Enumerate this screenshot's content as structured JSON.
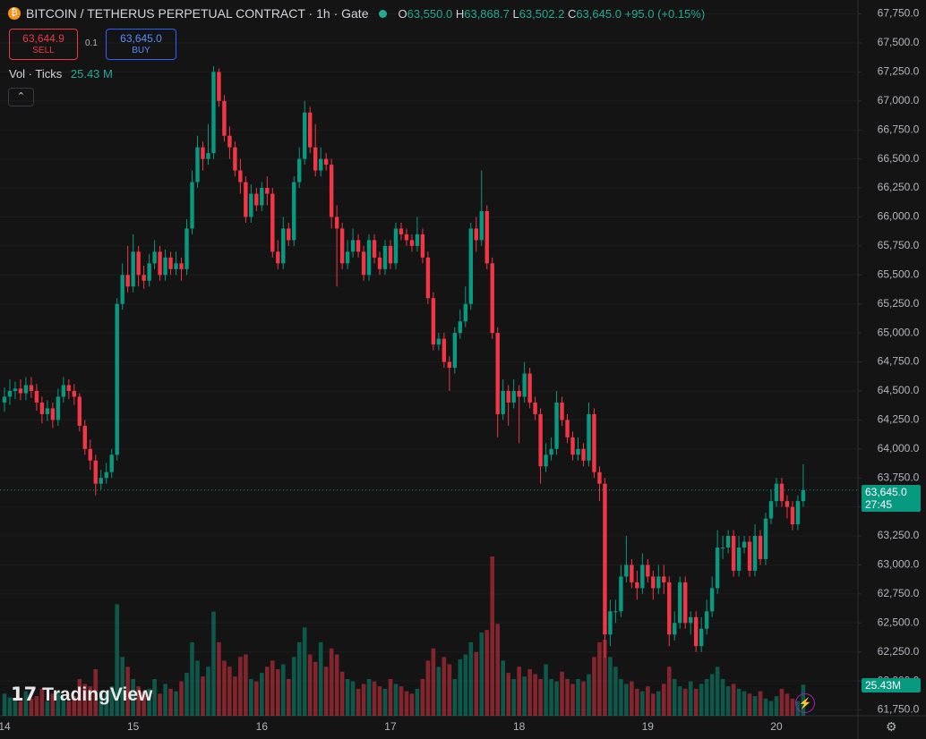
{
  "header": {
    "title": "BITCOIN / TETHERUS PERPETUAL CONTRACT · 1h · Gate",
    "ohlc": [
      {
        "key": "O",
        "value": "63,550.0"
      },
      {
        "key": "H",
        "value": "63,868.7"
      },
      {
        "key": "L",
        "value": "63,502.2"
      },
      {
        "key": "C",
        "value": "63,645.0"
      }
    ],
    "change": "+95.0 (+0.15%)"
  },
  "trade": {
    "sell_price": "63,644.9",
    "sell": "SELL",
    "spread": "0.1",
    "buy_price": "63,645.0",
    "buy": "BUY"
  },
  "volume_legend": {
    "label": "Vol · Ticks",
    "value": "25.43 M"
  },
  "price_tag": {
    "price": "63,645.0",
    "countdown": "27:45"
  },
  "volume_tag": "25.43M",
  "watermark": "TradingView",
  "chart_data": {
    "type": "candlestick",
    "up_color": "#089981",
    "down_color": "#f23645",
    "grid": true,
    "categories": [
      "14",
      null,
      null,
      null,
      null,
      null,
      null,
      null,
      null,
      null,
      null,
      null,
      null,
      null,
      null,
      null,
      null,
      null,
      null,
      null,
      null,
      null,
      null,
      null,
      "15",
      null,
      null,
      null,
      null,
      null,
      null,
      null,
      null,
      null,
      null,
      null,
      null,
      null,
      null,
      null,
      null,
      null,
      null,
      null,
      null,
      null,
      null,
      null,
      "16",
      null,
      null,
      null,
      null,
      null,
      null,
      null,
      null,
      null,
      null,
      null,
      null,
      null,
      null,
      null,
      null,
      null,
      null,
      null,
      null,
      null,
      null,
      null,
      "17",
      null,
      null,
      null,
      null,
      null,
      null,
      null,
      null,
      null,
      null,
      null,
      null,
      null,
      null,
      null,
      null,
      null,
      null,
      null,
      null,
      null,
      null,
      null,
      "18",
      null,
      null,
      null,
      null,
      null,
      null,
      null,
      null,
      null,
      null,
      null,
      null,
      null,
      null,
      null,
      null,
      null,
      null,
      null,
      null,
      null,
      null,
      null,
      "19",
      null,
      null,
      null,
      null,
      null,
      null,
      null,
      null,
      null,
      null,
      null,
      null,
      null,
      null,
      null,
      null,
      null,
      null,
      null,
      null,
      null,
      null,
      null,
      "20",
      null,
      null,
      null,
      null,
      null
    ],
    "open": [
      64400,
      64450,
      64500,
      64520,
      64480,
      64550,
      64500,
      64400,
      64300,
      64350,
      64250,
      64450,
      64550,
      64500,
      64450,
      64200,
      64000,
      63900,
      63700,
      63750,
      63800,
      63950,
      65250,
      65500,
      65400,
      65700,
      65500,
      65450,
      65600,
      65700,
      65500,
      65650,
      65550,
      65600,
      65550,
      65900,
      66300,
      66600,
      66500,
      66550,
      67250,
      67000,
      66700,
      66600,
      66400,
      66300,
      66000,
      66200,
      66100,
      66250,
      66200,
      65700,
      65600,
      65900,
      65800,
      66300,
      66500,
      66900,
      66600,
      66400,
      66500,
      66450,
      66000,
      65900,
      65600,
      65700,
      65800,
      65700,
      65500,
      65800,
      65650,
      65550,
      65750,
      65600,
      65900,
      65850,
      65800,
      65750,
      65850,
      65650,
      65300,
      64900,
      64950,
      64750,
      64700,
      65000,
      65100,
      65250,
      65900,
      65800,
      66050,
      65600,
      65000,
      64300,
      64500,
      64400,
      64500,
      64450,
      64650,
      64400,
      64300,
      63850,
      63950,
      64000,
      64400,
      64250,
      64100,
      63950,
      64000,
      63900,
      64300,
      63800,
      63700,
      62400,
      62600,
      62600,
      62900,
      63000,
      62850,
      62800,
      63000,
      62900,
      62800,
      62900,
      62850,
      62400,
      62500,
      62850,
      62500,
      62550,
      62300,
      62450,
      62600,
      62800,
      63150,
      63150,
      63250,
      62950,
      63150,
      63200,
      62950,
      63250,
      63050,
      63400,
      63550,
      63700,
      63550,
      63500,
      63350,
      63550
    ],
    "high": [
      64530,
      64600,
      64580,
      64600,
      64620,
      64620,
      64560,
      64450,
      64420,
      64400,
      64520,
      64620,
      64600,
      64560,
      64480,
      64250,
      64080,
      63950,
      63820,
      63880,
      64000,
      65300,
      65600,
      65750,
      65850,
      65750,
      65580,
      65680,
      65800,
      65750,
      65720,
      65700,
      65700,
      65650,
      65980,
      66400,
      66700,
      66650,
      66800,
      67300,
      67280,
      67050,
      66780,
      66650,
      66500,
      66350,
      66280,
      66250,
      66300,
      66350,
      66250,
      65800,
      66000,
      65950,
      66350,
      66600,
      67000,
      66950,
      66800,
      66600,
      66550,
      66500,
      66100,
      65950,
      65800,
      65900,
      65850,
      65750,
      65850,
      65850,
      65700,
      65800,
      65800,
      65950,
      65950,
      65900,
      65850,
      66000,
      65900,
      65700,
      65350,
      65000,
      65000,
      64800,
      65050,
      65200,
      65400,
      65950,
      66000,
      66400,
      66100,
      65650,
      65050,
      64600,
      64550,
      64600,
      64550,
      64750,
      64700,
      64450,
      64350,
      64050,
      64100,
      64500,
      64450,
      64300,
      64150,
      64100,
      64050,
      64400,
      64350,
      63850,
      63750,
      62700,
      62700,
      63000,
      63250,
      63050,
      62950,
      63100,
      63050,
      62950,
      63000,
      63000,
      62900,
      62600,
      62900,
      62900,
      62600,
      62600,
      62550,
      62700,
      62900,
      63300,
      63250,
      63300,
      63300,
      63250,
      63250,
      63250,
      63350,
      63300,
      63450,
      63650,
      63750,
      63750,
      63600,
      63550,
      63600,
      63868.7
    ],
    "low": [
      64320,
      64380,
      64430,
      64420,
      64420,
      64440,
      64330,
      64220,
      64240,
      64180,
      64200,
      64400,
      64430,
      64380,
      64150,
      63950,
      63820,
      63600,
      63650,
      63700,
      63750,
      63900,
      65200,
      65350,
      65350,
      65400,
      65380,
      65400,
      65550,
      65450,
      65450,
      65500,
      65500,
      65450,
      65500,
      65850,
      66250,
      66400,
      66450,
      66500,
      66950,
      66650,
      66500,
      66350,
      66200,
      65950,
      65950,
      66050,
      66050,
      66100,
      65650,
      65550,
      65550,
      65750,
      65750,
      66250,
      66450,
      66550,
      66350,
      66350,
      66400,
      65900,
      65400,
      65550,
      65550,
      65650,
      65650,
      65450,
      65450,
      65600,
      65500,
      65500,
      65550,
      65550,
      65800,
      65750,
      65700,
      65700,
      65600,
      65250,
      64850,
      64850,
      64700,
      64500,
      64650,
      64950,
      65050,
      65200,
      65700,
      65750,
      65550,
      64950,
      64100,
      64250,
      64200,
      64350,
      64050,
      64400,
      64350,
      64250,
      63700,
      63800,
      63900,
      63950,
      64200,
      64050,
      63900,
      63900,
      63850,
      63850,
      63750,
      63550,
      62200,
      62300,
      62500,
      62550,
      62850,
      62800,
      62700,
      62750,
      62850,
      62700,
      62750,
      62750,
      62300,
      62350,
      62450,
      62450,
      62400,
      62250,
      62250,
      62400,
      62550,
      62750,
      63050,
      63100,
      62900,
      62900,
      63100,
      62900,
      62900,
      63000,
      63000,
      63350,
      63500,
      63500,
      63400,
      63300,
      63300,
      63502.2
    ],
    "close": [
      64450,
      64500,
      64520,
      64480,
      64550,
      64500,
      64400,
      64300,
      64350,
      64250,
      64450,
      64550,
      64500,
      64450,
      64200,
      64000,
      63900,
      63700,
      63750,
      63800,
      63950,
      65250,
      65500,
      65400,
      65700,
      65500,
      65450,
      65600,
      65700,
      65500,
      65650,
      65550,
      65600,
      65550,
      65900,
      66300,
      66600,
      66500,
      66550,
      67250,
      67000,
      66700,
      66600,
      66400,
      66300,
      66000,
      66200,
      66100,
      66250,
      66200,
      65700,
      65600,
      65900,
      65800,
      66300,
      66500,
      66900,
      66600,
      66400,
      66500,
      66450,
      66000,
      65900,
      65600,
      65700,
      65800,
      65700,
      65500,
      65800,
      65650,
      65550,
      65750,
      65600,
      65900,
      65850,
      65800,
      65750,
      65850,
      65650,
      65300,
      64900,
      64950,
      64750,
      64700,
      65000,
      65100,
      65250,
      65900,
      65800,
      66050,
      65600,
      65000,
      64300,
      64500,
      64400,
      64500,
      64450,
      64650,
      64400,
      64300,
      63850,
      63950,
      64000,
      64400,
      64250,
      64100,
      63950,
      64000,
      63900,
      64300,
      63800,
      63700,
      62400,
      62600,
      62600,
      62900,
      63000,
      62850,
      62800,
      63000,
      62900,
      62800,
      62900,
      62850,
      62400,
      62500,
      62850,
      62500,
      62550,
      62300,
      62450,
      62600,
      62800,
      63150,
      63150,
      63250,
      62950,
      63150,
      63200,
      62950,
      63250,
      63050,
      63400,
      63550,
      63700,
      63550,
      63500,
      63350,
      63550,
      63645
    ],
    "volume": [
      18,
      15,
      14,
      12,
      20,
      14,
      16,
      22,
      12,
      18,
      20,
      14,
      12,
      16,
      30,
      26,
      24,
      38,
      20,
      18,
      24,
      91,
      48,
      40,
      30,
      24,
      20,
      22,
      30,
      18,
      26,
      22,
      20,
      28,
      35,
      60,
      45,
      32,
      40,
      85,
      60,
      45,
      40,
      32,
      48,
      50,
      30,
      28,
      35,
      40,
      45,
      38,
      42,
      30,
      48,
      60,
      72,
      50,
      44,
      60,
      40,
      55,
      50,
      36,
      30,
      28,
      22,
      26,
      30,
      28,
      24,
      22,
      30,
      26,
      24,
      20,
      18,
      22,
      30,
      45,
      55,
      40,
      48,
      42,
      30,
      46,
      50,
      60,
      52,
      68,
      70,
      130,
      75,
      45,
      35,
      30,
      40,
      32,
      38,
      34,
      30,
      42,
      30,
      28,
      36,
      30,
      26,
      30,
      28,
      34,
      48,
      60,
      62,
      48,
      40,
      30,
      26,
      28,
      22,
      20,
      24,
      18,
      20,
      26,
      40,
      30,
      24,
      22,
      28,
      22,
      26,
      30,
      34,
      40,
      30,
      24,
      26,
      22,
      20,
      18,
      16,
      20,
      14,
      12,
      16,
      22,
      18,
      14,
      12,
      25.43
    ],
    "ylim": [
      61700,
      67870
    ],
    "yticks": [
      {
        "value": 61750,
        "label": "61,750.0"
      },
      {
        "value": 62000,
        "label": "62,000.0"
      },
      {
        "value": 62250,
        "label": "62,250.0"
      },
      {
        "value": 62500,
        "label": "62,500.0"
      },
      {
        "value": 62750,
        "label": "62,750.0"
      },
      {
        "value": 63000,
        "label": "63,000.0"
      },
      {
        "value": 63250,
        "label": "63,250.0"
      },
      {
        "value": 63500,
        "label": "63,500.0"
      },
      {
        "value": 63750,
        "label": "63,750.0"
      },
      {
        "value": 64000,
        "label": "64,000.0"
      },
      {
        "value": 64250,
        "label": "64,250.0"
      },
      {
        "value": 64500,
        "label": "64,500.0"
      },
      {
        "value": 64750,
        "label": "64,750.0"
      },
      {
        "value": 65000,
        "label": "65,000.0"
      },
      {
        "value": 65250,
        "label": "65,250.0"
      },
      {
        "value": 65500,
        "label": "65,500.0"
      },
      {
        "value": 65750,
        "label": "65,750.0"
      },
      {
        "value": 66000,
        "label": "66,000.0"
      },
      {
        "value": 66250,
        "label": "66,250.0"
      },
      {
        "value": 66500,
        "label": "66,500.0"
      },
      {
        "value": 66750,
        "label": "66,750.0"
      },
      {
        "value": 67000,
        "label": "67,000.0"
      },
      {
        "value": 67250,
        "label": "67,250.0"
      },
      {
        "value": 67500,
        "label": "67,500.0"
      },
      {
        "value": 67750,
        "label": "67,750.0"
      }
    ]
  }
}
